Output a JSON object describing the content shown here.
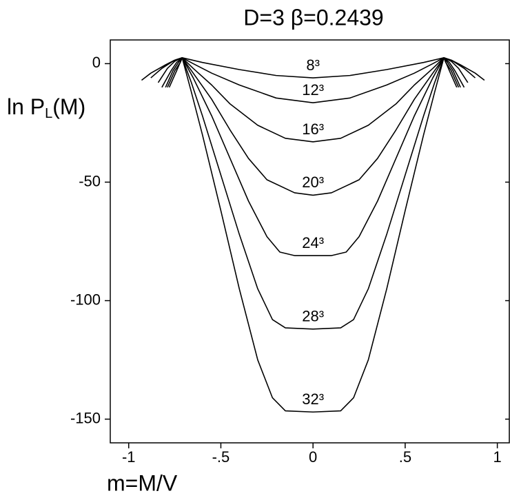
{
  "chart_data": {
    "type": "line",
    "title": "D=3 β=0.2439",
    "x_label": "m=M/V",
    "y_label": [
      "ln P",
      "L",
      "(M)"
    ],
    "xlim": [
      -1.1,
      1.065
    ],
    "ylim": [
      -160,
      10
    ],
    "xticks": [
      -1,
      {
        "value": -0.5,
        "label": "-.5"
      },
      0,
      {
        "value": 0.5,
        "label": ".5"
      },
      1
    ],
    "yticks": [
      0,
      -50,
      -100,
      -150
    ],
    "color": "#000000",
    "series": [
      {
        "name": "8³",
        "x": [
          -0.93,
          -0.88,
          -0.8,
          -0.75,
          -0.71,
          -0.6,
          -0.4,
          -0.2,
          0,
          0.2,
          0.4,
          0.6,
          0.71,
          0.75,
          0.8,
          0.88,
          0.93
        ],
        "values": [
          -7,
          -4,
          -0.5,
          1.5,
          2.5,
          0.5,
          -2.5,
          -5,
          -6,
          -5,
          -2.5,
          0.5,
          2.5,
          1.5,
          -0.5,
          -4,
          -7
        ]
      },
      {
        "name": "12³",
        "x": [
          -0.88,
          -0.82,
          -0.76,
          -0.71,
          -0.65,
          -0.55,
          -0.4,
          -0.2,
          0,
          0.2,
          0.4,
          0.55,
          0.65,
          0.71,
          0.76,
          0.82,
          0.88
        ],
        "values": [
          -6,
          -2,
          1,
          2.5,
          0,
          -4,
          -9,
          -14.5,
          -16.5,
          -14.5,
          -9,
          -4,
          0,
          2.5,
          1,
          -2,
          -6
        ]
      },
      {
        "name": "16³",
        "x": [
          -0.84,
          -0.79,
          -0.75,
          -0.71,
          -0.65,
          -0.55,
          -0.45,
          -0.3,
          -0.15,
          0,
          0.15,
          0.3,
          0.45,
          0.55,
          0.65,
          0.71,
          0.75,
          0.79,
          0.84
        ],
        "values": [
          -8,
          -2,
          1,
          2.5,
          -2,
          -9,
          -17,
          -26,
          -31.5,
          -33,
          -31.5,
          -26,
          -17,
          -9,
          -2,
          2.5,
          1,
          -2,
          -8
        ]
      },
      {
        "name": "20³",
        "x": [
          -0.82,
          -0.77,
          -0.74,
          -0.71,
          -0.65,
          -0.55,
          -0.45,
          -0.35,
          -0.25,
          -0.1,
          0,
          0.1,
          0.25,
          0.35,
          0.45,
          0.55,
          0.65,
          0.71,
          0.74,
          0.77,
          0.82
        ],
        "values": [
          -10,
          -3,
          0.5,
          2.5,
          -4,
          -15,
          -28,
          -40,
          -49,
          -54.5,
          -55.5,
          -54.5,
          -49,
          -40,
          -28,
          -15,
          -4,
          2.5,
          0.5,
          -3,
          -10
        ]
      },
      {
        "name": "24³",
        "x": [
          -0.8,
          -0.76,
          -0.73,
          -0.71,
          -0.65,
          -0.55,
          -0.45,
          -0.35,
          -0.25,
          -0.18,
          -0.1,
          0,
          0.1,
          0.18,
          0.25,
          0.35,
          0.45,
          0.55,
          0.65,
          0.71,
          0.73,
          0.76,
          0.8
        ],
        "values": [
          -10,
          -3,
          0.5,
          2.5,
          -6,
          -22,
          -40,
          -58,
          -73,
          -79.5,
          -81,
          -81,
          -81,
          -79.5,
          -73,
          -58,
          -40,
          -22,
          -6,
          2.5,
          0.5,
          -3,
          -10
        ]
      },
      {
        "name": "28³",
        "x": [
          -0.79,
          -0.75,
          -0.72,
          -0.71,
          -0.66,
          -0.6,
          -0.5,
          -0.4,
          -0.3,
          -0.22,
          -0.15,
          0,
          0.15,
          0.22,
          0.3,
          0.4,
          0.5,
          0.6,
          0.66,
          0.71,
          0.72,
          0.75,
          0.79
        ],
        "values": [
          -10,
          -3,
          0.5,
          2.5,
          -8,
          -22,
          -47,
          -72,
          -95,
          -108,
          -111.5,
          -112,
          -111.5,
          -108,
          -95,
          -72,
          -47,
          -22,
          -8,
          2.5,
          0.5,
          -3,
          -10
        ]
      },
      {
        "name": "32³",
        "x": [
          -0.78,
          -0.74,
          -0.71,
          -0.66,
          -0.6,
          -0.5,
          -0.4,
          -0.3,
          -0.22,
          -0.15,
          0,
          0.15,
          0.22,
          0.3,
          0.4,
          0.5,
          0.6,
          0.66,
          0.71,
          0.74,
          0.78
        ],
        "values": [
          -10,
          -3,
          2.5,
          -12,
          -30,
          -62,
          -95,
          -125,
          -141,
          -146.5,
          -147,
          -146.5,
          -141,
          -125,
          -95,
          -62,
          -30,
          -12,
          2.5,
          -3,
          -10
        ]
      }
    ]
  }
}
